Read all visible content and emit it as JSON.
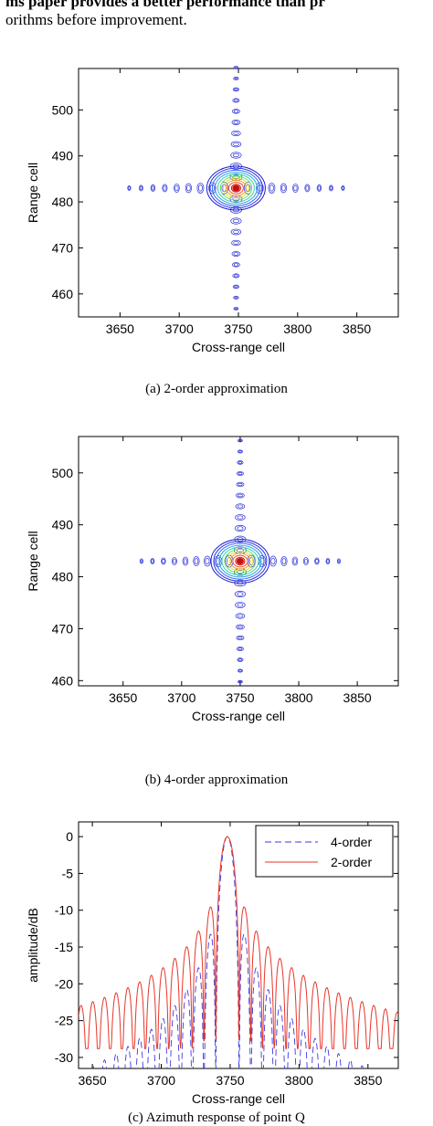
{
  "text": {
    "line1": "ms paper provides a better performance than pr",
    "line2": "orithms before improvement."
  },
  "captions": {
    "a": "(a) 2-order approximation",
    "b": "(b) 4-order approximation",
    "c": "(c) Azimuth response of point Q"
  },
  "chart_data": [
    {
      "type": "contour",
      "xlabel": "Cross-range cell",
      "ylabel": "Range cell",
      "xlim": [
        3615,
        3885
      ],
      "ylim": [
        455,
        509
      ],
      "xticks": [
        3650,
        3700,
        3750,
        3800,
        3850
      ],
      "yticks": [
        460,
        470,
        480,
        490,
        500
      ],
      "peak": {
        "x": 3748,
        "y": 483
      },
      "grid": false
    },
    {
      "type": "contour",
      "xlabel": "Cross-range cell",
      "ylabel": "Range cell",
      "xlim": [
        3612,
        3885
      ],
      "ylim": [
        459,
        507
      ],
      "xticks": [
        3650,
        3700,
        3750,
        3800,
        3850
      ],
      "yticks": [
        460,
        470,
        480,
        490,
        500
      ],
      "peak": {
        "x": 3750,
        "y": 483
      },
      "grid": false
    },
    {
      "type": "line",
      "xlabel": "Cross-range cell",
      "ylabel": "amplitude/dB",
      "xlim": [
        3640,
        3872
      ],
      "ylim": [
        -31.5,
        2
      ],
      "xticks": [
        3650,
        3700,
        3750,
        3800,
        3850
      ],
      "yticks": [
        0,
        -5,
        -10,
        -15,
        -20,
        -25,
        -30
      ],
      "legend_position": "top-right",
      "series": [
        {
          "name": "4-order",
          "color": "#3a3ae0",
          "dash": "dashed"
        },
        {
          "name": "2-order",
          "color": "#e8352a",
          "dash": "solid"
        }
      ],
      "grid": false
    }
  ]
}
